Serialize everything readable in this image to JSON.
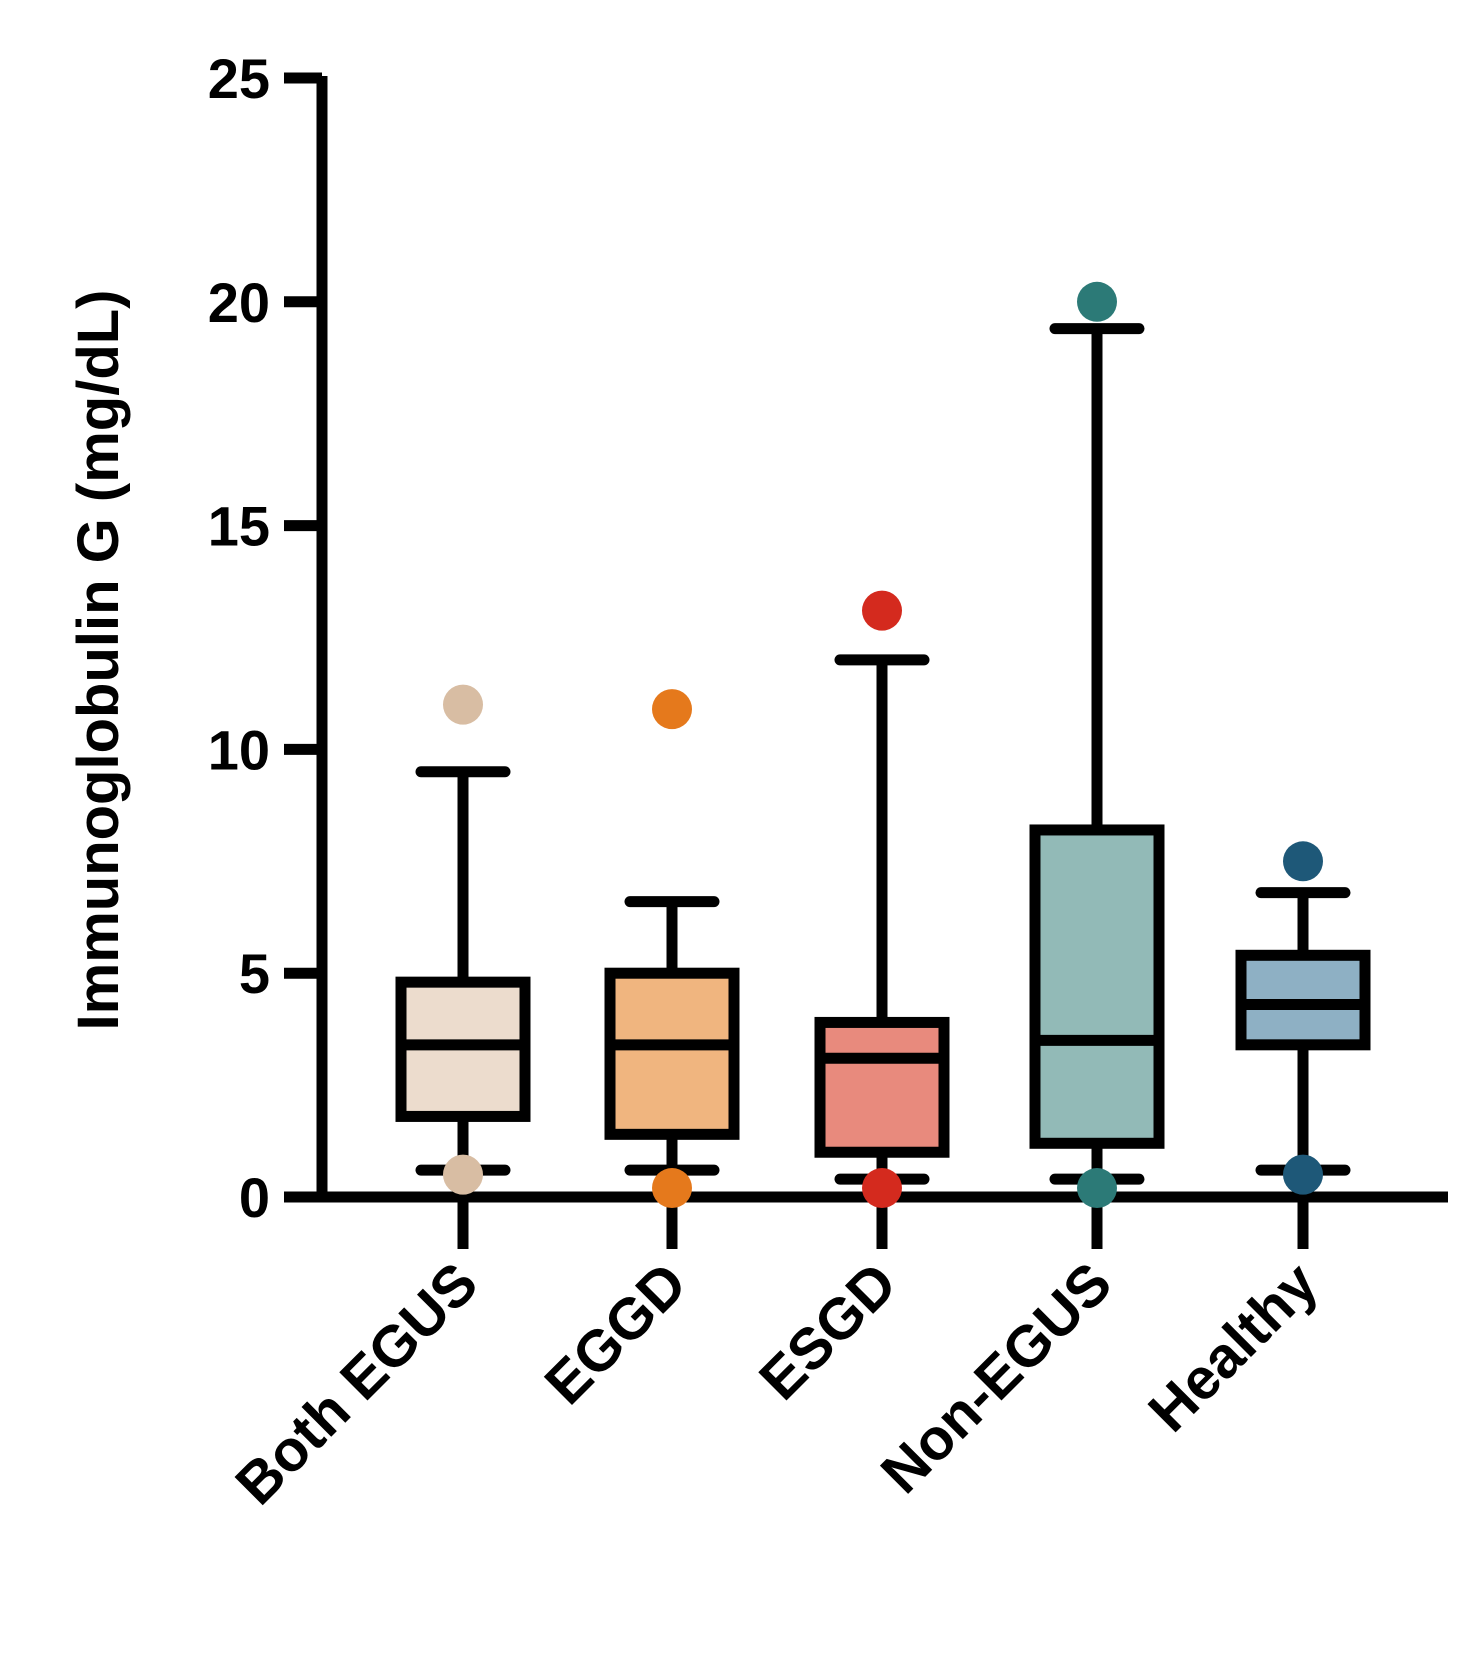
{
  "chart_data": {
    "type": "boxplot",
    "title": "",
    "xlabel": "",
    "ylabel": "Immunoglobulin G (mg/dL)",
    "ylim": [
      0,
      25
    ],
    "yticks": [
      0,
      5,
      10,
      15,
      20,
      25
    ],
    "grid": false,
    "categories": [
      "Both EGUS",
      "EGGD",
      "ESGD",
      "Non-EGUS",
      "Healthy"
    ],
    "series": [
      {
        "name": "Both EGUS",
        "whisker_low": 0.6,
        "q1": 1.8,
        "median": 3.4,
        "q3": 4.8,
        "whisker_high": 9.5,
        "outliers": [
          11.0,
          0.5
        ],
        "fill": "#ecdccd",
        "point_color": "#d8bda3"
      },
      {
        "name": "EGGD",
        "whisker_low": 0.6,
        "q1": 1.4,
        "median": 3.4,
        "q3": 5.0,
        "whisker_high": 6.6,
        "outliers": [
          10.9,
          0.2
        ],
        "fill": "#f0b57f",
        "point_color": "#e5791c"
      },
      {
        "name": "ESGD",
        "whisker_low": 0.4,
        "q1": 1.0,
        "median": 3.1,
        "q3": 3.9,
        "whisker_high": 12.0,
        "outliers": [
          13.1,
          0.2
        ],
        "fill": "#e88a7d",
        "point_color": "#d42a1e"
      },
      {
        "name": "Non-EGUS",
        "whisker_low": 0.4,
        "q1": 1.2,
        "median": 3.5,
        "q3": 8.2,
        "whisker_high": 19.4,
        "outliers": [
          20.0,
          0.2
        ],
        "fill": "#92bab7",
        "point_color": "#2c7a77"
      },
      {
        "name": "Healthy",
        "whisker_low": 0.6,
        "q1": 3.4,
        "median": 4.3,
        "q3": 5.4,
        "whisker_high": 6.8,
        "outliers": [
          7.5,
          0.5
        ],
        "fill": "#8eb0c4",
        "point_color": "#1e5878"
      }
    ]
  }
}
